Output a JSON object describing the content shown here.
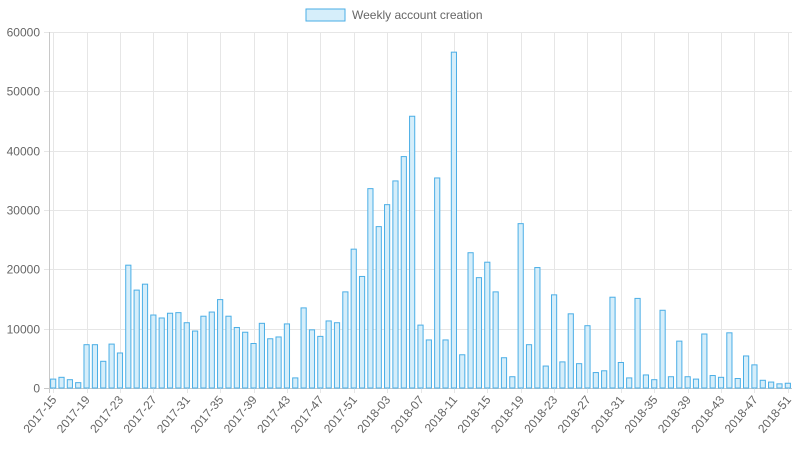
{
  "chart_data": {
    "type": "bar",
    "title": "",
    "xlabel": "",
    "ylabel": "",
    "ylim": [
      0,
      60000
    ],
    "y_ticks": [
      0,
      10000,
      20000,
      30000,
      40000,
      50000,
      60000
    ],
    "y_tick_labels": [
      "0",
      "10000",
      "20000",
      "30000",
      "40000",
      "50000",
      "60000"
    ],
    "grid": true,
    "legend_position": "top-center",
    "colors": {
      "bar_fill": "#d6eefa",
      "bar_stroke": "#4aaee6",
      "grid": "#e6e6e6",
      "text": "#666666"
    },
    "categories": [
      "2017-15",
      "2017-16",
      "2017-17",
      "2017-18",
      "2017-19",
      "2017-20",
      "2017-21",
      "2017-22",
      "2017-23",
      "2017-24",
      "2017-25",
      "2017-26",
      "2017-27",
      "2017-28",
      "2017-29",
      "2017-30",
      "2017-31",
      "2017-32",
      "2017-33",
      "2017-34",
      "2017-35",
      "2017-36",
      "2017-37",
      "2017-38",
      "2017-39",
      "2017-40",
      "2017-41",
      "2017-42",
      "2017-43",
      "2017-44",
      "2017-45",
      "2017-46",
      "2017-47",
      "2017-48",
      "2017-49",
      "2017-50",
      "2017-51",
      "2017-52",
      "2018-01",
      "2018-02",
      "2018-03",
      "2018-04",
      "2018-05",
      "2018-06",
      "2018-07",
      "2018-08",
      "2018-09",
      "2018-10",
      "2018-11",
      "2018-12",
      "2018-13",
      "2018-14",
      "2018-15",
      "2018-16",
      "2018-17",
      "2018-18",
      "2018-19",
      "2018-20",
      "2018-21",
      "2018-22",
      "2018-23",
      "2018-24",
      "2018-25",
      "2018-26",
      "2018-27",
      "2018-28",
      "2018-29",
      "2018-30",
      "2018-31",
      "2018-32",
      "2018-33",
      "2018-34",
      "2018-35",
      "2018-36",
      "2018-37",
      "2018-38",
      "2018-39",
      "2018-40",
      "2018-41",
      "2018-42",
      "2018-43",
      "2018-44",
      "2018-45",
      "2018-46",
      "2018-47",
      "2018-48",
      "2018-49",
      "2018-50",
      "2018-51"
    ],
    "x_tick_labels": [
      "2017-15",
      "2017-19",
      "2017-23",
      "2017-27",
      "2017-31",
      "2017-35",
      "2017-39",
      "2017-43",
      "2017-47",
      "2017-51",
      "2018-03",
      "2018-07",
      "2018-11",
      "2018-15",
      "2018-19",
      "2018-23",
      "2018-27",
      "2018-31",
      "2018-35",
      "2018-39",
      "2018-43",
      "2018-47",
      "2018-51"
    ],
    "series": [
      {
        "name": "Weekly account creation",
        "values": [
          1500,
          1800,
          1400,
          900,
          7300,
          7300,
          4500,
          7400,
          5900,
          20700,
          16500,
          17500,
          12300,
          11800,
          12600,
          12700,
          11000,
          9600,
          12100,
          12800,
          14900,
          12100,
          10200,
          9400,
          7500,
          10900,
          8300,
          8600,
          10800,
          1700,
          13500,
          9800,
          8700,
          11300,
          11000,
          16200,
          23400,
          18800,
          33600,
          27200,
          30900,
          34900,
          39000,
          45800,
          10600,
          8100,
          35400,
          8100,
          56600,
          5600,
          22800,
          18600,
          21200,
          16200,
          5100,
          1900,
          27700,
          7300,
          20300,
          3700,
          15700,
          4400,
          12500,
          4100,
          10500,
          2600,
          2900,
          15300,
          4300,
          1700,
          15100,
          2200,
          1400,
          13100,
          1900,
          7900,
          1900,
          1500,
          9100,
          2100,
          1800,
          9300,
          1600,
          5400,
          3900,
          1300,
          1000,
          700,
          800
        ]
      }
    ]
  }
}
